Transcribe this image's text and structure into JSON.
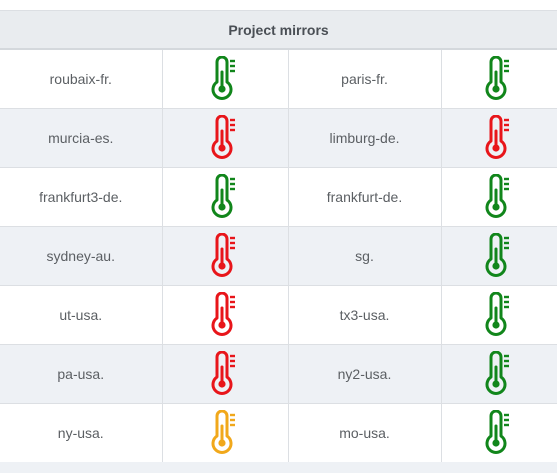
{
  "header": {
    "title": "Project mirrors"
  },
  "colors": {
    "green": "#11861b",
    "red": "#e8151a",
    "orange": "#f1a81b"
  },
  "rows": [
    {
      "left": {
        "name": "roubaix-fr.",
        "status": "green",
        "icon": "thermometer-icon"
      },
      "right": {
        "name": "paris-fr.",
        "status": "green",
        "icon": "thermometer-icon"
      }
    },
    {
      "left": {
        "name": "murcia-es.",
        "status": "red",
        "icon": "thermometer-icon"
      },
      "right": {
        "name": "limburg-de.",
        "status": "red",
        "icon": "thermometer-icon"
      }
    },
    {
      "left": {
        "name": "frankfurt3-de.",
        "status": "green",
        "icon": "thermometer-icon"
      },
      "right": {
        "name": "frankfurt-de.",
        "status": "green",
        "icon": "thermometer-icon"
      }
    },
    {
      "left": {
        "name": "sydney-au.",
        "status": "red",
        "icon": "thermometer-icon"
      },
      "right": {
        "name": "sg.",
        "status": "green",
        "icon": "thermometer-icon"
      }
    },
    {
      "left": {
        "name": "ut-usa.",
        "status": "red",
        "icon": "thermometer-icon"
      },
      "right": {
        "name": "tx3-usa.",
        "status": "green",
        "icon": "thermometer-icon"
      }
    },
    {
      "left": {
        "name": "pa-usa.",
        "status": "red",
        "icon": "thermometer-icon"
      },
      "right": {
        "name": "ny2-usa.",
        "status": "green",
        "icon": "thermometer-icon"
      }
    },
    {
      "left": {
        "name": "ny-usa.",
        "status": "orange",
        "icon": "thermometer-icon"
      },
      "right": {
        "name": "mo-usa.",
        "status": "green",
        "icon": "thermometer-icon"
      }
    }
  ]
}
